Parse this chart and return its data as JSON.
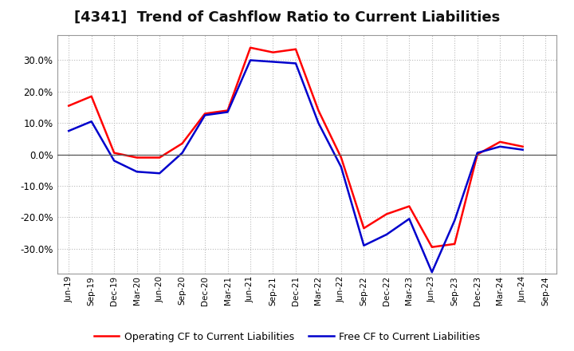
{
  "title": "[4341]  Trend of Cashflow Ratio to Current Liabilities",
  "x_labels": [
    "Jun-19",
    "Sep-19",
    "Dec-19",
    "Mar-20",
    "Jun-20",
    "Sep-20",
    "Dec-20",
    "Mar-21",
    "Jun-21",
    "Sep-21",
    "Dec-21",
    "Mar-22",
    "Jun-22",
    "Sep-22",
    "Dec-22",
    "Mar-23",
    "Jun-23",
    "Sep-23",
    "Dec-23",
    "Mar-24",
    "Jun-24",
    "Sep-24"
  ],
  "operating_cf": [
    0.155,
    0.185,
    0.005,
    -0.01,
    -0.01,
    0.035,
    0.13,
    0.14,
    0.34,
    0.325,
    0.335,
    0.14,
    -0.01,
    -0.235,
    -0.19,
    -0.165,
    -0.295,
    -0.285,
    0.0,
    0.04,
    0.025,
    null
  ],
  "free_cf": [
    0.075,
    0.105,
    -0.02,
    -0.055,
    -0.06,
    0.005,
    0.125,
    0.135,
    0.3,
    0.295,
    0.29,
    0.1,
    -0.04,
    -0.29,
    -0.255,
    -0.205,
    -0.375,
    -0.21,
    0.005,
    0.025,
    0.015,
    null
  ],
  "ylim": [
    -0.38,
    0.38
  ],
  "yticks": [
    -0.3,
    -0.2,
    -0.1,
    0.0,
    0.1,
    0.2,
    0.3
  ],
  "operating_color": "#ff0000",
  "free_color": "#0000cc",
  "background_color": "#ffffff",
  "plot_bg_color": "#ffffff",
  "grid_color": "#bbbbbb",
  "legend_operating": "Operating CF to Current Liabilities",
  "legend_free": "Free CF to Current Liabilities",
  "title_fontsize": 13,
  "tick_fontsize": 8.5
}
